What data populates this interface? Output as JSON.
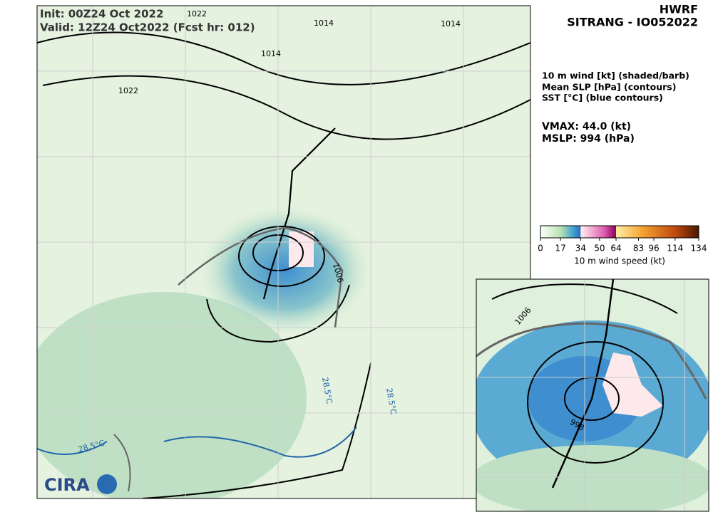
{
  "header": {
    "init": "Init: 00Z24 Oct 2022",
    "valid": "Valid: 12Z24 Oct2022 (Fcst hr: 012)",
    "model": "HWRF",
    "storm": "SITRANG - IO052022"
  },
  "legend": {
    "lines": [
      "10 m wind [kt] (shaded/barb)",
      "Mean SLP [hPa] (contours)",
      "SST [°C] (blue contours)"
    ],
    "vmax": "VMAX:  44.0 (kt)",
    "mslp": "MSLP:  994 (hPa)"
  },
  "colorbar": {
    "label": "10 m wind speed (kt)",
    "lim": [
      0,
      134
    ],
    "ticks": [
      0,
      17,
      34,
      50,
      64,
      83,
      96,
      114,
      134
    ]
  },
  "contour_labels": [
    "1014",
    "1014",
    "1014",
    "1022",
    "1022",
    "1006",
    "28.5°C",
    "28.5°C",
    "28.5°C",
    "1006",
    "998"
  ],
  "logo": "CIRA"
}
